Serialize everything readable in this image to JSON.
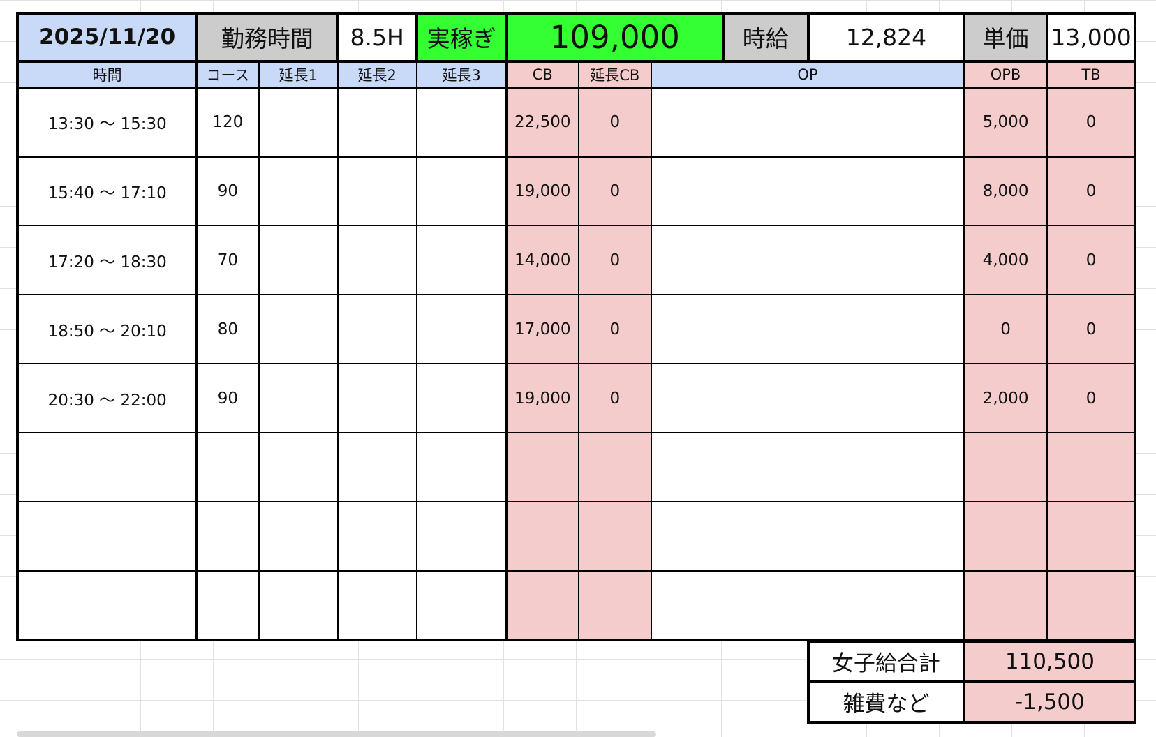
{
  "header": {
    "date": "2025/11/20",
    "work_time_label": "勤務時間",
    "work_time": "8.5H",
    "earnings_label": "実稼ぎ",
    "earnings": "109,000",
    "hourly_label": "時給",
    "hourly": "12,824",
    "unit_price_label": "単価",
    "unit_price": "13,000"
  },
  "table": {
    "columns": [
      "時間",
      "コース",
      "延長1",
      "延長2",
      "延長3",
      "CB",
      "延長CB",
      "OP",
      "OPB",
      "TB"
    ],
    "rows": [
      [
        "13:30 〜 15:30",
        "120",
        null,
        null,
        null,
        "22,500",
        "0",
        null,
        "5,000",
        "0"
      ],
      [
        "15:40 〜 17:10",
        "90",
        null,
        null,
        null,
        "19,000",
        "0",
        null,
        "8,000",
        "0"
      ],
      [
        "17:20 〜 18:30",
        "70",
        null,
        null,
        null,
        "14,000",
        "0",
        null,
        "4,000",
        "0"
      ],
      [
        "18:50 〜 20:10",
        "80",
        null,
        null,
        null,
        "17,000",
        "0",
        null,
        "0",
        "0"
      ],
      [
        "20:30 〜 22:00",
        "90",
        null,
        null,
        null,
        "19,000",
        "0",
        null,
        "2,000",
        "0"
      ]
    ]
  },
  "summary": [
    {
      "label": "女子給合計",
      "value": "110,500"
    },
    {
      "label": "雑費など",
      "value": "-1,500"
    }
  ]
}
